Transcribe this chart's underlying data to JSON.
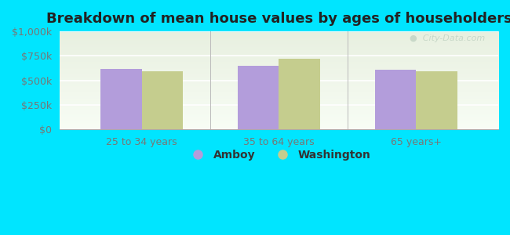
{
  "title": "Breakdown of mean house values by ages of householders",
  "categories": [
    "25 to 34 years",
    "35 to 64 years",
    "65 years+"
  ],
  "amboy_values": [
    620000,
    645000,
    610000
  ],
  "washington_values": [
    595000,
    720000,
    590000
  ],
  "amboy_color": "#b39ddb",
  "washington_color": "#c5cd8e",
  "ylim": [
    0,
    1000000
  ],
  "yticks": [
    0,
    250000,
    500000,
    750000,
    1000000
  ],
  "ytick_labels": [
    "$0",
    "$250k",
    "$500k",
    "$750k",
    "$1,000k"
  ],
  "legend_amboy": "Amboy",
  "legend_washington": "Washington",
  "background_color": "#00e5ff",
  "watermark": "City-Data.com",
  "bar_width": 0.3,
  "title_fontsize": 13,
  "axis_label_fontsize": 9,
  "legend_fontsize": 10,
  "tick_color": "#777777"
}
